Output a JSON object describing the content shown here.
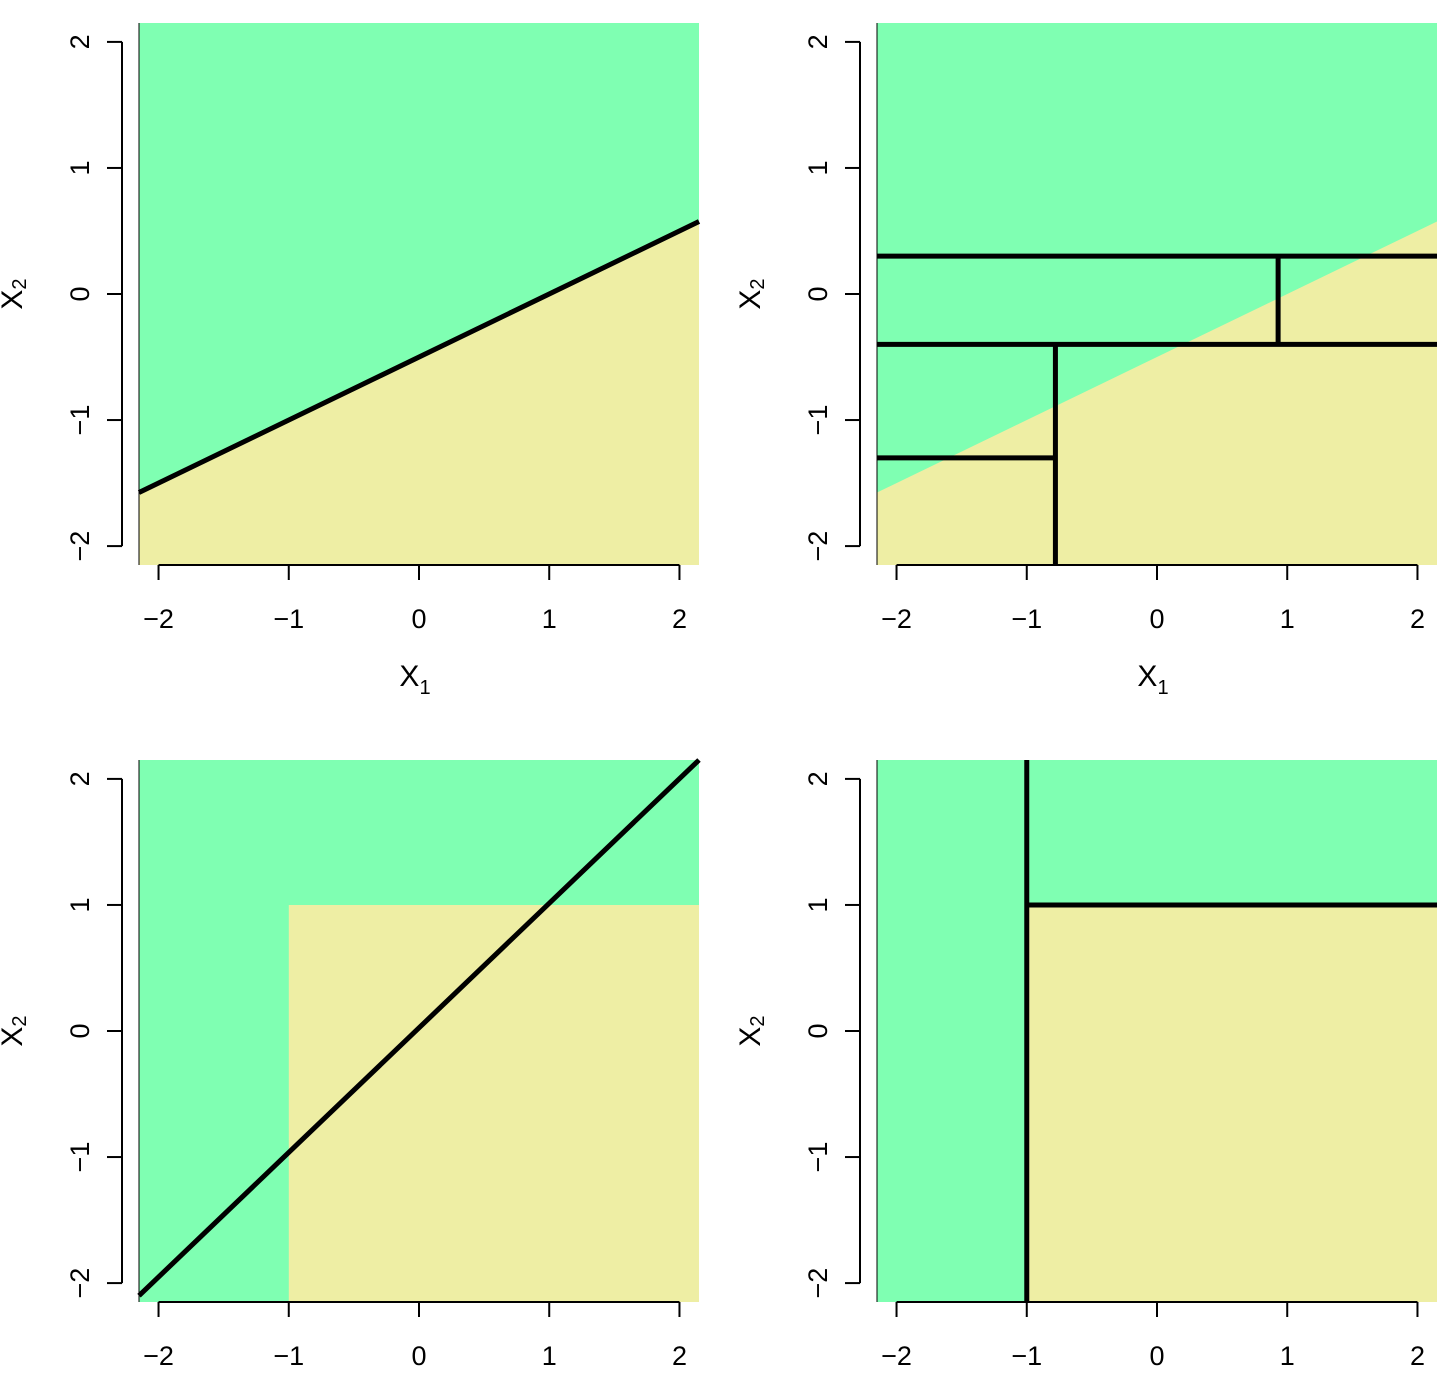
{
  "chart_data": [
    {
      "type": "classification-regions",
      "panel": "top-left",
      "xlabel": "X",
      "xlabel_sub": "1",
      "ylabel": "X",
      "ylabel_sub": "2",
      "xlim": [
        -2.15,
        2.15
      ],
      "ylim": [
        -2.15,
        2.15
      ],
      "xticks": [
        -2,
        -1,
        0,
        1,
        2
      ],
      "yticks": [
        -2,
        -1,
        0,
        1,
        2
      ],
      "xtick_labels": [
        "−2",
        "−1",
        "0",
        "1",
        "2"
      ],
      "ytick_labels": [
        "−2",
        "−1",
        "0",
        "1",
        "2"
      ],
      "background_class": "green",
      "regions": [
        {
          "class": "yellow",
          "polygon": [
            [
              -2.15,
              -2.15
            ],
            [
              2.15,
              -2.15
            ],
            [
              2.15,
              0.575
            ],
            [
              -2.15,
              -1.575
            ]
          ]
        }
      ],
      "lines": [
        {
          "x1": -2.15,
          "y1": -1.575,
          "x2": 2.15,
          "y2": 0.575
        }
      ]
    },
    {
      "type": "classification-regions",
      "panel": "top-right",
      "xlabel": "X",
      "xlabel_sub": "1",
      "ylabel": "X",
      "ylabel_sub": "2",
      "xlim": [
        -2.15,
        2.15
      ],
      "ylim": [
        -2.15,
        2.15
      ],
      "xticks": [
        -2,
        -1,
        0,
        1,
        2
      ],
      "yticks": [
        -2,
        -1,
        0,
        1,
        2
      ],
      "xtick_labels": [
        "−2",
        "−1",
        "0",
        "1",
        "2"
      ],
      "ytick_labels": [
        "−2",
        "−1",
        "0",
        "1",
        "2"
      ],
      "background_class": "green",
      "regions": [
        {
          "class": "yellow",
          "polygon": [
            [
              -2.15,
              -2.15
            ],
            [
              2.15,
              -2.15
            ],
            [
              2.15,
              0.575
            ],
            [
              -2.15,
              -1.575
            ]
          ]
        }
      ],
      "lines": [
        {
          "x1": -2.15,
          "y1": 0.3,
          "x2": 2.15,
          "y2": 0.3
        },
        {
          "x1": -2.15,
          "y1": -0.4,
          "x2": 2.15,
          "y2": -0.4
        },
        {
          "x1": 0.93,
          "y1": -0.4,
          "x2": 0.93,
          "y2": 0.3
        },
        {
          "x1": -0.78,
          "y1": -2.15,
          "x2": -0.78,
          "y2": -0.4
        },
        {
          "x1": -2.15,
          "y1": -1.3,
          "x2": -0.78,
          "y2": -1.3
        }
      ]
    },
    {
      "type": "classification-regions",
      "panel": "bottom-left",
      "xlabel": "",
      "xlabel_sub": "",
      "ylabel": "X",
      "ylabel_sub": "2",
      "xlim": [
        -2.15,
        2.15
      ],
      "ylim": [
        -2.15,
        2.15
      ],
      "xticks": [
        -2,
        -1,
        0,
        1,
        2
      ],
      "yticks": [
        -2,
        -1,
        0,
        1,
        2
      ],
      "xtick_labels": [
        "−2",
        "−1",
        "0",
        "1",
        "2"
      ],
      "ytick_labels": [
        "−2",
        "−1",
        "0",
        "1",
        "2"
      ],
      "background_class": "green",
      "regions": [
        {
          "class": "yellow",
          "polygon": [
            [
              -1,
              -2.15
            ],
            [
              2.15,
              -2.15
            ],
            [
              2.15,
              1
            ],
            [
              -1,
              1
            ]
          ]
        }
      ],
      "lines": [
        {
          "x1": -2.15,
          "y1": -2.1,
          "x2": 2.15,
          "y2": 2.15
        }
      ]
    },
    {
      "type": "classification-regions",
      "panel": "bottom-right",
      "xlabel": "",
      "xlabel_sub": "",
      "ylabel": "X",
      "ylabel_sub": "2",
      "xlim": [
        -2.15,
        2.15
      ],
      "ylim": [
        -2.15,
        2.15
      ],
      "xticks": [
        -2,
        -1,
        0,
        1,
        2
      ],
      "yticks": [
        -2,
        -1,
        0,
        1,
        2
      ],
      "xtick_labels": [
        "−2",
        "−1",
        "0",
        "1",
        "2"
      ],
      "ytick_labels": [
        "−2",
        "−1",
        "0",
        "1",
        "2"
      ],
      "background_class": "green",
      "regions": [
        {
          "class": "yellow",
          "polygon": [
            [
              -1,
              -2.15
            ],
            [
              2.15,
              -2.15
            ],
            [
              2.15,
              1
            ],
            [
              -1,
              1
            ]
          ]
        }
      ],
      "lines": [
        {
          "x1": -1,
          "y1": -2.15,
          "x2": -1,
          "y2": 2.15
        },
        {
          "x1": -1,
          "y1": 1,
          "x2": 2.15,
          "y2": 1
        }
      ]
    }
  ],
  "colors": {
    "green": "#7fffb2",
    "yellow": "#eeeea4",
    "line": "#000000",
    "axis": "#000000"
  }
}
